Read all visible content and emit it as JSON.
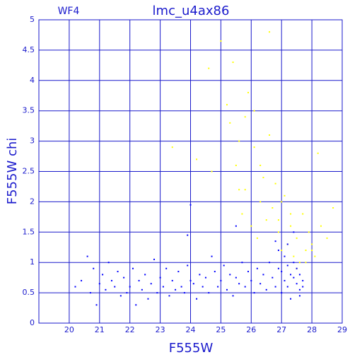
{
  "chart_data": {
    "type": "scatter",
    "title": "lmc_u4ax86",
    "subtitle": "WF4",
    "xlabel": "F555W",
    "ylabel": "F555W chi",
    "xlim": [
      19,
      29
    ],
    "ylim": [
      0,
      5
    ],
    "xticks": [
      20,
      21,
      22,
      23,
      24,
      25,
      26,
      27,
      28,
      29
    ],
    "yticks": [
      0,
      0.5,
      1,
      1.5,
      2,
      2.5,
      3,
      3.5,
      4,
      4.5,
      5
    ],
    "grid": true,
    "axis_color": "#1a1acc",
    "series": [
      {
        "color": "#0000ff",
        "x": [
          20.2,
          20.4,
          20.6,
          20.7,
          20.8,
          20.9,
          21.0,
          21.1,
          21.2,
          21.3,
          21.4,
          21.5,
          21.6,
          21.7,
          21.8,
          21.9,
          22.0,
          22.1,
          22.2,
          22.3,
          22.4,
          22.5,
          22.6,
          22.7,
          22.8,
          22.9,
          23.0,
          23.1,
          23.2,
          23.3,
          23.4,
          23.5,
          23.6,
          23.7,
          23.8,
          23.9,
          24.0,
          24.1,
          24.2,
          24.3,
          24.4,
          24.5,
          24.6,
          24.7,
          24.8,
          24.9,
          25.0,
          25.1,
          25.2,
          25.3,
          25.4,
          25.5,
          25.6,
          25.7,
          25.8,
          25.9,
          26.0,
          26.1,
          26.2,
          26.3,
          26.4,
          26.5,
          26.6,
          26.7,
          26.8,
          26.9,
          27.0,
          27.0,
          27.1,
          27.1,
          27.2,
          27.2,
          27.3,
          27.3,
          27.4,
          27.4,
          27.5,
          27.5,
          27.6,
          27.6,
          27.7,
          27.7,
          27.2,
          27.4,
          26.9,
          27.6,
          24.0,
          23.9,
          25.5,
          26.8
        ],
        "values": [
          0.6,
          0.7,
          1.1,
          0.5,
          0.9,
          0.3,
          0.65,
          0.8,
          0.55,
          1.0,
          0.7,
          0.6,
          0.85,
          0.45,
          0.75,
          0.5,
          0.6,
          0.9,
          0.3,
          0.7,
          0.55,
          0.8,
          0.4,
          0.65,
          1.05,
          0.5,
          0.75,
          0.6,
          0.9,
          0.45,
          0.7,
          0.55,
          0.85,
          0.6,
          0.5,
          0.95,
          0.7,
          0.65,
          0.4,
          0.8,
          0.6,
          0.75,
          0.5,
          1.1,
          0.85,
          0.6,
          0.7,
          0.95,
          0.55,
          0.8,
          0.45,
          0.75,
          0.65,
          1.0,
          0.6,
          0.85,
          0.7,
          0.5,
          0.9,
          0.65,
          0.8,
          0.55,
          1.0,
          0.75,
          0.6,
          0.9,
          0.85,
          0.5,
          0.7,
          1.1,
          0.95,
          0.6,
          0.8,
          0.4,
          0.75,
          1.0,
          0.65,
          0.9,
          0.55,
          0.8,
          0.7,
          0.6,
          1.3,
          1.5,
          1.2,
          0.45,
          1.95,
          1.45,
          1.6,
          1.35
        ]
      },
      {
        "color": "#ffff00",
        "x": [
          24.6,
          24.7,
          25.0,
          25.2,
          25.3,
          25.4,
          25.5,
          25.6,
          25.7,
          25.8,
          25.9,
          26.0,
          26.1,
          26.2,
          26.3,
          26.4,
          26.5,
          26.6,
          26.7,
          26.8,
          26.9,
          27.0,
          27.1,
          27.2,
          27.3,
          27.4,
          27.5,
          27.6,
          27.7,
          27.8,
          27.9,
          28.0,
          28.1,
          28.2,
          28.3,
          28.5,
          28.7,
          23.4,
          24.2,
          25.8,
          26.3,
          26.6,
          27.0,
          27.3,
          27.5,
          27.8,
          28.0,
          26.1,
          25.6,
          26.9
        ],
        "values": [
          4.2,
          2.5,
          4.65,
          3.6,
          3.3,
          4.3,
          2.6,
          3.0,
          1.8,
          2.2,
          3.8,
          1.6,
          2.9,
          1.4,
          2.0,
          2.4,
          1.7,
          4.8,
          1.9,
          2.3,
          1.5,
          1.2,
          2.1,
          1.3,
          1.6,
          1.1,
          1.4,
          1.0,
          1.8,
          1.2,
          1.5,
          1.3,
          1.1,
          2.8,
          1.6,
          1.4,
          1.9,
          2.9,
          2.7,
          3.4,
          2.6,
          3.1,
          2.0,
          1.8,
          0.9,
          1.0,
          1.2,
          3.5,
          2.2,
          1.7
        ]
      }
    ]
  }
}
